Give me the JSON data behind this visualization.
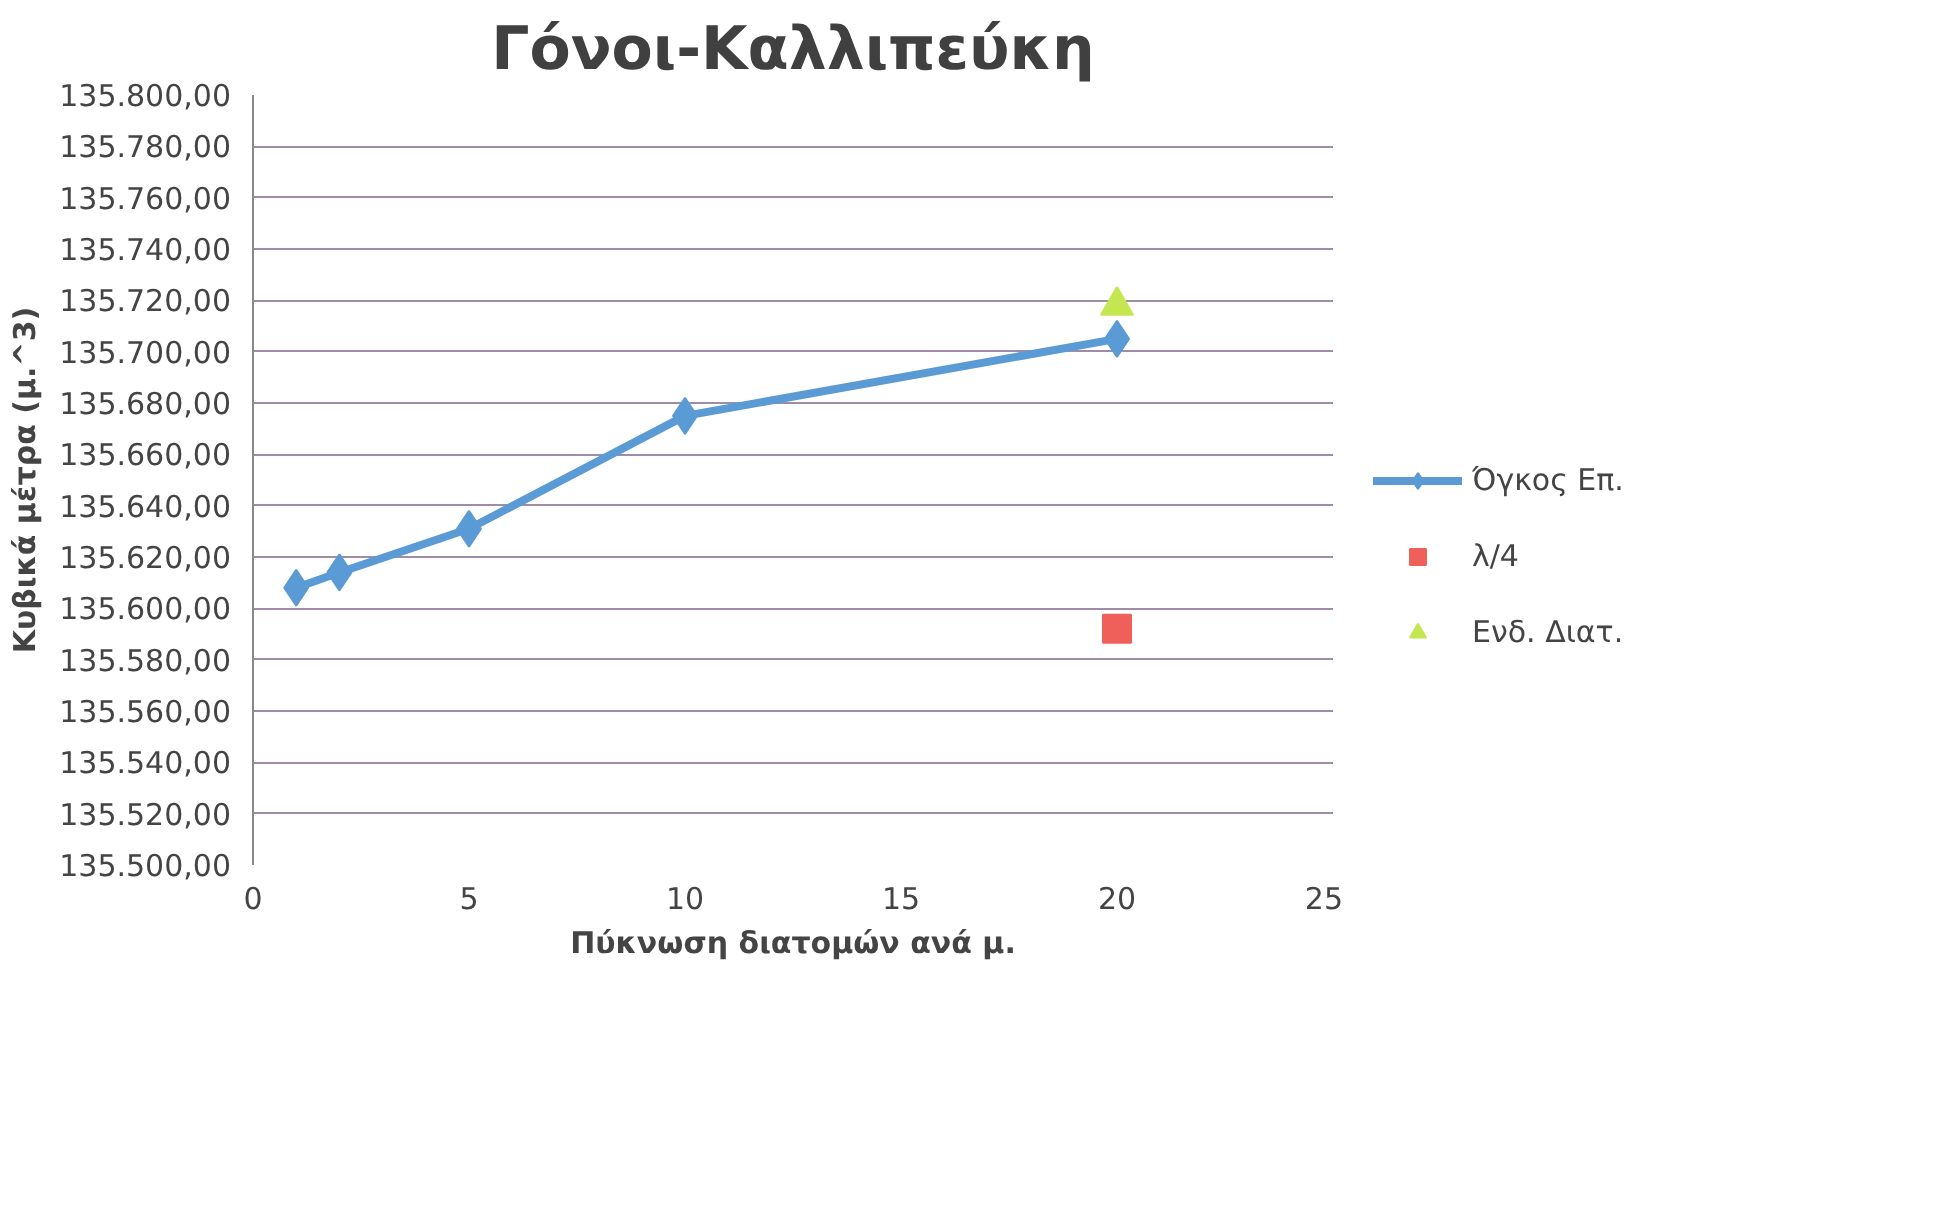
{
  "chart_data": {
    "type": "line",
    "title": "Γόνοι-Καλλιπεύκη",
    "xlabel": "Πύκνωση διατομών ανά μ.",
    "ylabel": "Κυβικά μέτρα (μ.^3)",
    "xlim": [
      0,
      25
    ],
    "xticks": [
      0,
      5,
      10,
      15,
      20,
      25
    ],
    "ylim": [
      135500,
      135800
    ],
    "yticks": [
      {
        "value": 135500,
        "label": "135.500,00"
      },
      {
        "value": 135520,
        "label": "135.520,00"
      },
      {
        "value": 135540,
        "label": "135.540,00"
      },
      {
        "value": 135560,
        "label": "135.560,00"
      },
      {
        "value": 135580,
        "label": "135.580,00"
      },
      {
        "value": 135600,
        "label": "135.600,00"
      },
      {
        "value": 135620,
        "label": "135.620,00"
      },
      {
        "value": 135640,
        "label": "135.640,00"
      },
      {
        "value": 135660,
        "label": "135.660,00"
      },
      {
        "value": 135680,
        "label": "135.680,00"
      },
      {
        "value": 135700,
        "label": "135.700,00"
      },
      {
        "value": 135720,
        "label": "135.720,00"
      },
      {
        "value": 135740,
        "label": "135.740,00"
      },
      {
        "value": 135760,
        "label": "135.760,00"
      },
      {
        "value": 135780,
        "label": "135.780,00"
      },
      {
        "value": 135800,
        "label": "135.800,00"
      }
    ],
    "grid": "y",
    "legend": "right",
    "series": [
      {
        "name": "Όγκος Επ.",
        "marker": "diamond",
        "color": "#5b9bd5",
        "x": [
          1,
          2,
          5,
          10,
          20
        ],
        "values": [
          135608,
          135614,
          135631,
          135675,
          135705
        ]
      },
      {
        "name": "λ/4",
        "type": "scatter",
        "marker": "square",
        "color": "#f0605a",
        "x": [
          20
        ],
        "values": [
          135592
        ]
      },
      {
        "name": "Ενδ. Διατ.",
        "type": "scatter",
        "marker": "triangle",
        "color": "#c4e650",
        "x": [
          20
        ],
        "values": [
          135718
        ]
      }
    ]
  }
}
